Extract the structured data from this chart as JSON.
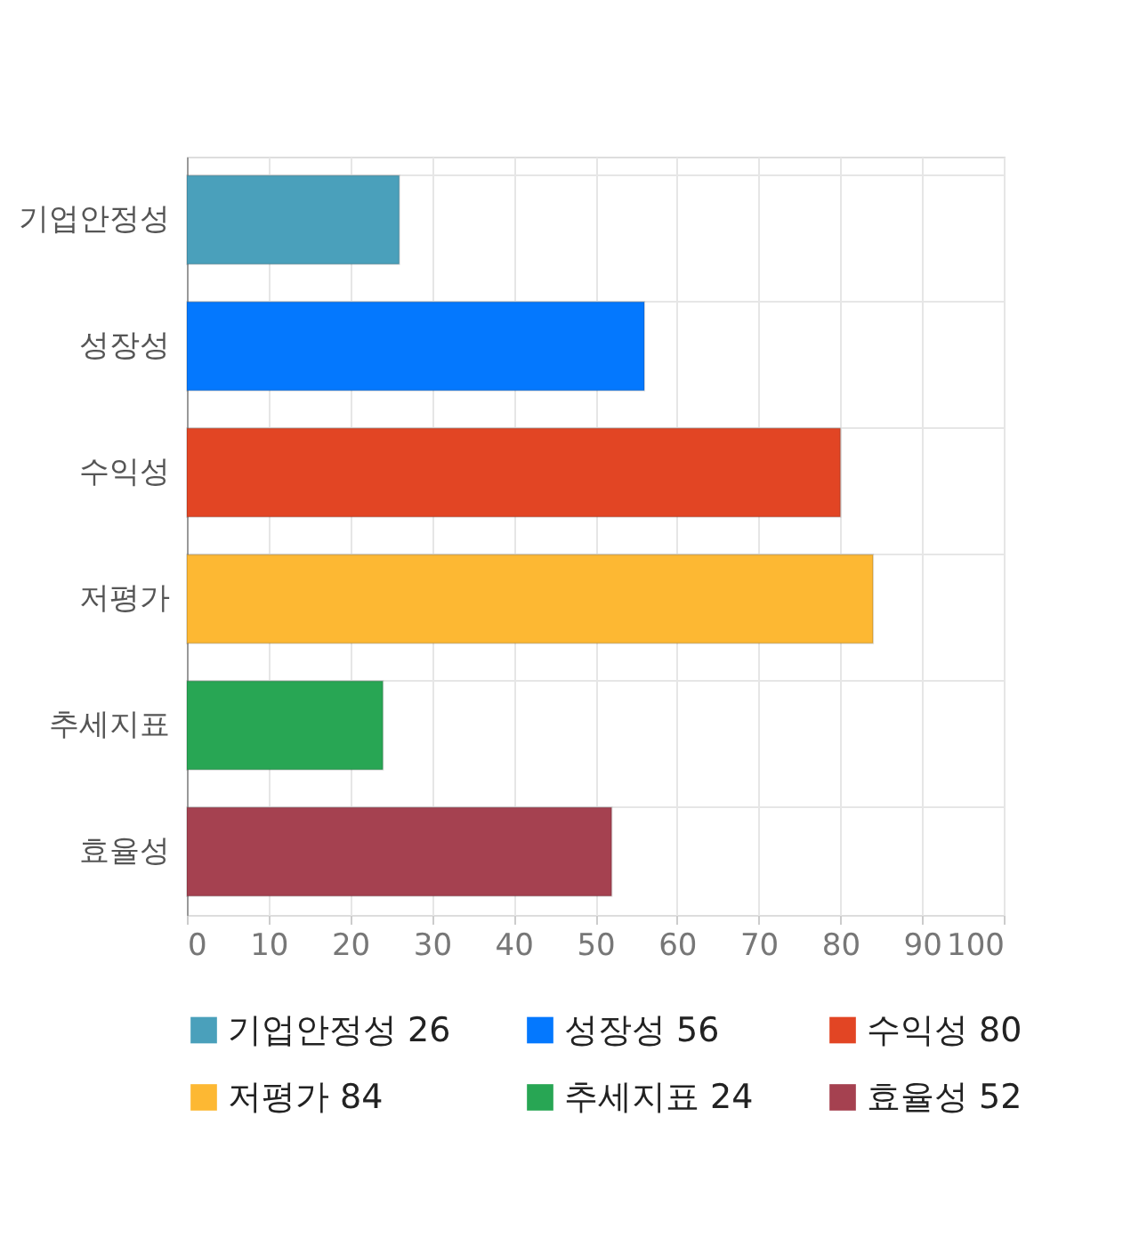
{
  "chart_data": {
    "type": "bar",
    "orientation": "horizontal",
    "categories": [
      "기업안정성",
      "성장성",
      "수익성",
      "저평가",
      "추세지표",
      "효율성"
    ],
    "series": [
      {
        "name": "기업안정성 26",
        "color": "#4aa0bb",
        "values": [
          26,
          null,
          null,
          null,
          null,
          null
        ]
      },
      {
        "name": "성장성 56",
        "color": "#0478fe",
        "values": [
          null,
          56,
          null,
          null,
          null,
          null
        ]
      },
      {
        "name": "수익성 80",
        "color": "#e24524",
        "values": [
          null,
          null,
          80,
          null,
          null,
          null
        ]
      },
      {
        "name": "저평가 84",
        "color": "#fdb833",
        "values": [
          null,
          null,
          null,
          84,
          null,
          null
        ]
      },
      {
        "name": "추세지표 24",
        "color": "#28a654",
        "values": [
          null,
          null,
          null,
          null,
          24,
          null
        ]
      },
      {
        "name": "효율성 52",
        "color": "#a54150",
        "values": [
          null,
          null,
          null,
          null,
          null,
          52
        ]
      }
    ],
    "xlim": [
      0,
      100
    ],
    "xticks": [
      0,
      10,
      20,
      30,
      40,
      50,
      60,
      70,
      80,
      90,
      100
    ],
    "grid": true,
    "legend": "bottom"
  }
}
